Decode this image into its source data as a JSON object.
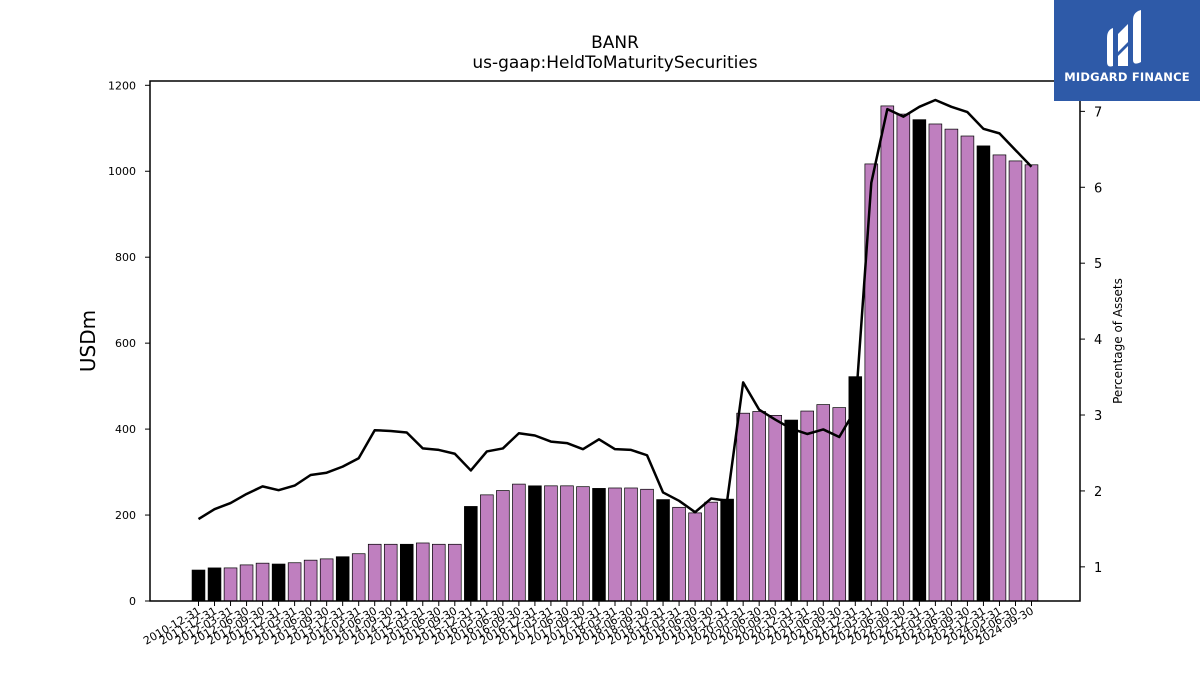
{
  "chart_data": {
    "type": "bar",
    "title": "BANR",
    "subtitle": "us-gaap:HeldToMaturitySecurities",
    "ylabel": "USDm",
    "y2label": "Percentage of Assets",
    "ylim": [
      0,
      1210
    ],
    "y2lim": [
      0.55,
      7.4
    ],
    "yticks": [
      0,
      200,
      400,
      600,
      800,
      1000,
      1200
    ],
    "y2ticks": [
      1,
      2,
      3,
      4,
      5,
      6,
      7
    ],
    "categories": [
      "2010-12-31",
      "2011-12-31",
      "2012-03-31",
      "2012-06-30",
      "2012-09-30",
      "2012-12-31",
      "2013-03-31",
      "2013-06-30",
      "2013-09-30",
      "2013-12-31",
      "2014-03-31",
      "2014-06-30",
      "2014-09-30",
      "2014-12-31",
      "2015-03-31",
      "2015-06-30",
      "2015-09-30",
      "2015-12-31",
      "2016-03-31",
      "2016-06-30",
      "2016-09-30",
      "2016-12-31",
      "2017-03-31",
      "2017-06-30",
      "2017-09-30",
      "2017-12-31",
      "2018-03-31",
      "2018-06-30",
      "2018-09-30",
      "2018-12-31",
      "2019-03-31",
      "2019-06-30",
      "2019-09-30",
      "2019-12-31",
      "2020-03-31",
      "2020-06-30",
      "2020-09-30",
      "2020-12-31",
      "2021-03-31",
      "2021-06-30",
      "2021-09-30",
      "2021-12-31",
      "2022-03-31",
      "2022-06-30",
      "2022-09-30",
      "2022-12-31",
      "2023-03-31",
      "2023-06-30",
      "2023-09-30",
      "2023-12-31",
      "2024-03-31",
      "2024-06-30",
      "2024-09-30"
    ],
    "series": [
      {
        "name": "",
        "kind": "bar",
        "values": [
          72,
          77,
          77,
          84,
          88,
          86,
          89,
          95,
          98,
          103,
          110,
          132,
          132,
          132,
          135,
          132,
          132,
          220,
          247,
          257,
          272,
          268,
          268,
          268,
          266,
          262,
          263,
          263,
          260,
          236,
          218,
          205,
          230,
          237,
          437,
          441,
          432,
          421,
          442,
          457,
          450,
          522,
          1017,
          1152,
          1133,
          1120,
          1110,
          1098,
          1082,
          1059,
          1038,
          1024,
          1015
        ],
        "bar_colors": [
          "#000000",
          "#000000",
          "#bf7fbf",
          "#bf7fbf",
          "#bf7fbf",
          "#000000",
          "#bf7fbf",
          "#bf7fbf",
          "#bf7fbf",
          "#000000",
          "#bf7fbf",
          "#bf7fbf",
          "#bf7fbf",
          "#000000",
          "#bf7fbf",
          "#bf7fbf",
          "#bf7fbf",
          "#000000",
          "#bf7fbf",
          "#bf7fbf",
          "#bf7fbf",
          "#000000",
          "#bf7fbf",
          "#bf7fbf",
          "#bf7fbf",
          "#000000",
          "#bf7fbf",
          "#bf7fbf",
          "#bf7fbf",
          "#000000",
          "#bf7fbf",
          "#bf7fbf",
          "#bf7fbf",
          "#000000",
          "#bf7fbf",
          "#bf7fbf",
          "#bf7fbf",
          "#000000",
          "#bf7fbf",
          "#bf7fbf",
          "#bf7fbf",
          "#000000",
          "#bf7fbf",
          "#bf7fbf",
          "#bf7fbf",
          "#000000",
          "#bf7fbf",
          "#bf7fbf",
          "#bf7fbf",
          "#000000",
          "#bf7fbf",
          "#bf7fbf",
          "#bf7fbf"
        ]
      },
      {
        "name": "",
        "kind": "line",
        "axis": "right",
        "color": "#000000",
        "values": [
          1.63,
          1.76,
          1.84,
          1.96,
          2.06,
          2.01,
          2.07,
          2.21,
          2.24,
          2.32,
          2.43,
          2.8,
          2.79,
          2.77,
          2.56,
          2.54,
          2.49,
          2.27,
          2.52,
          2.56,
          2.76,
          2.73,
          2.65,
          2.63,
          2.55,
          2.68,
          2.55,
          2.54,
          2.47,
          1.98,
          1.87,
          1.72,
          1.9,
          1.87,
          3.43,
          3.07,
          2.94,
          2.82,
          2.75,
          2.81,
          2.71,
          3.07,
          6.06,
          7.03,
          6.93,
          7.06,
          7.15,
          7.06,
          6.99,
          6.77,
          6.71,
          6.49,
          6.27
        ]
      }
    ],
    "colors": {
      "bar_highlight": "#000000",
      "bar_default": "#bf7fbf",
      "line": "#000000"
    },
    "grid": false,
    "legend": "none"
  },
  "logo": {
    "text": "MIDGARD FINANCE",
    "background": "#2e5aa8"
  }
}
